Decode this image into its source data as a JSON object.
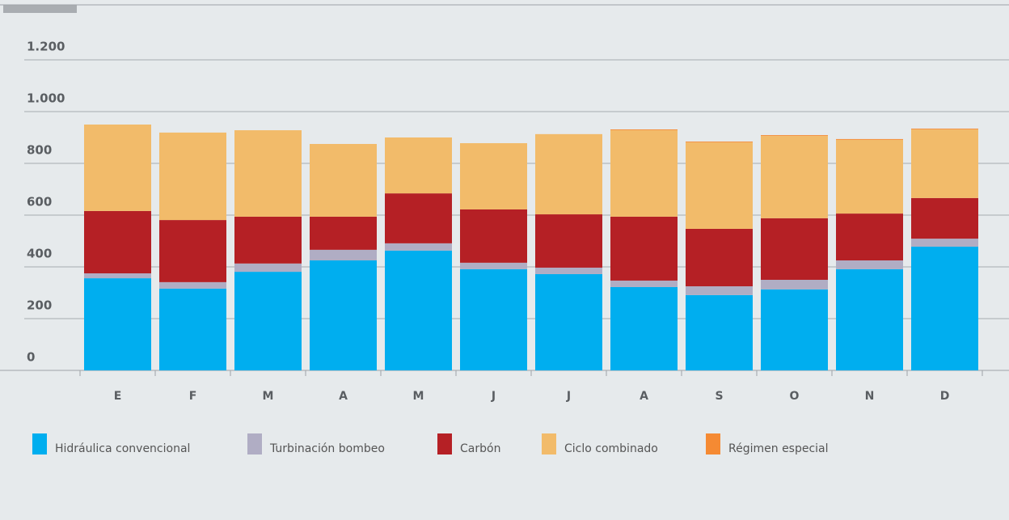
{
  "chart_data": {
    "type": "stacked-bar",
    "categories": [
      "E",
      "F",
      "M",
      "A",
      "M",
      "J",
      "J",
      "A",
      "S",
      "O",
      "N",
      "D"
    ],
    "series": [
      {
        "name": "Hidráulica convencional",
        "color": "#00aeef",
        "values": [
          356,
          316,
          381,
          425,
          463,
          391,
          372,
          322,
          291,
          313,
          391,
          478
        ]
      },
      {
        "name": "Turbinación bombeo",
        "color": "#b0adc4",
        "values": [
          19,
          25,
          32,
          41,
          28,
          25,
          25,
          25,
          34,
          37,
          34,
          31
        ]
      },
      {
        "name": "Carbón",
        "color": "#b52025",
        "values": [
          241,
          240,
          181,
          128,
          193,
          206,
          206,
          247,
          222,
          238,
          181,
          157
        ]
      },
      {
        "name": "Ciclo combinado",
        "color": "#f2bb6a",
        "values": [
          334,
          338,
          334,
          281,
          216,
          256,
          310,
          334,
          334,
          318,
          285,
          265
        ]
      },
      {
        "name": "Régimen especial",
        "color": "#f58a33",
        "values": [
          0,
          0,
          0,
          0,
          0,
          0,
          0,
          3,
          3,
          3,
          3,
          3
        ]
      }
    ],
    "ylim": [
      0,
      1400
    ],
    "yticks": [
      0,
      200,
      400,
      600,
      800,
      {
        "value": 1000,
        "label": "1.000"
      },
      {
        "value": 1200,
        "label": "1.200"
      }
    ],
    "grid": true
  }
}
